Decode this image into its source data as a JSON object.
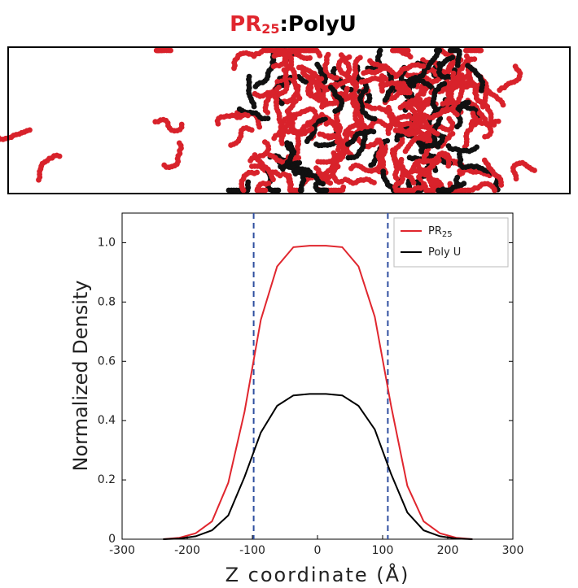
{
  "chart_data": {
    "type": "line",
    "title": {
      "prefix": "PR",
      "subscript": "25",
      "suffix": ":PolyU"
    },
    "xlabel": "Z coordinate (Å)",
    "ylabel": "Normalized Density",
    "x": [
      -237,
      -212,
      -187,
      -162,
      -137,
      -112,
      -87,
      -62,
      -37,
      -12,
      13,
      38,
      63,
      88,
      113,
      138,
      163,
      188,
      213,
      238
    ],
    "series": [
      {
        "name": "PR",
        "name_subscript": "25",
        "color": "#e0262e",
        "values": [
          0,
          0.005,
          0.02,
          0.06,
          0.19,
          0.43,
          0.74,
          0.92,
          0.985,
          0.99,
          0.99,
          0.985,
          0.92,
          0.75,
          0.45,
          0.18,
          0.06,
          0.02,
          0.005,
          0
        ]
      },
      {
        "name": "Poly U",
        "color": "#000000",
        "values": [
          0,
          0.002,
          0.01,
          0.03,
          0.08,
          0.21,
          0.36,
          0.45,
          0.485,
          0.49,
          0.49,
          0.485,
          0.45,
          0.37,
          0.22,
          0.09,
          0.03,
          0.01,
          0.002,
          0
        ]
      }
    ],
    "vlines": [
      -98,
      108
    ],
    "vline_color": "#2f4fa0",
    "xlim": [
      -300,
      300
    ],
    "xticks": [
      -300,
      -200,
      -100,
      0,
      100,
      200,
      300
    ],
    "ylim": [
      0,
      1.1
    ],
    "yticks": [
      0,
      0.2,
      0.4,
      0.6,
      0.8,
      {
        "value": 1,
        "label": "1.0"
      }
    ],
    "legend": "upper right"
  }
}
